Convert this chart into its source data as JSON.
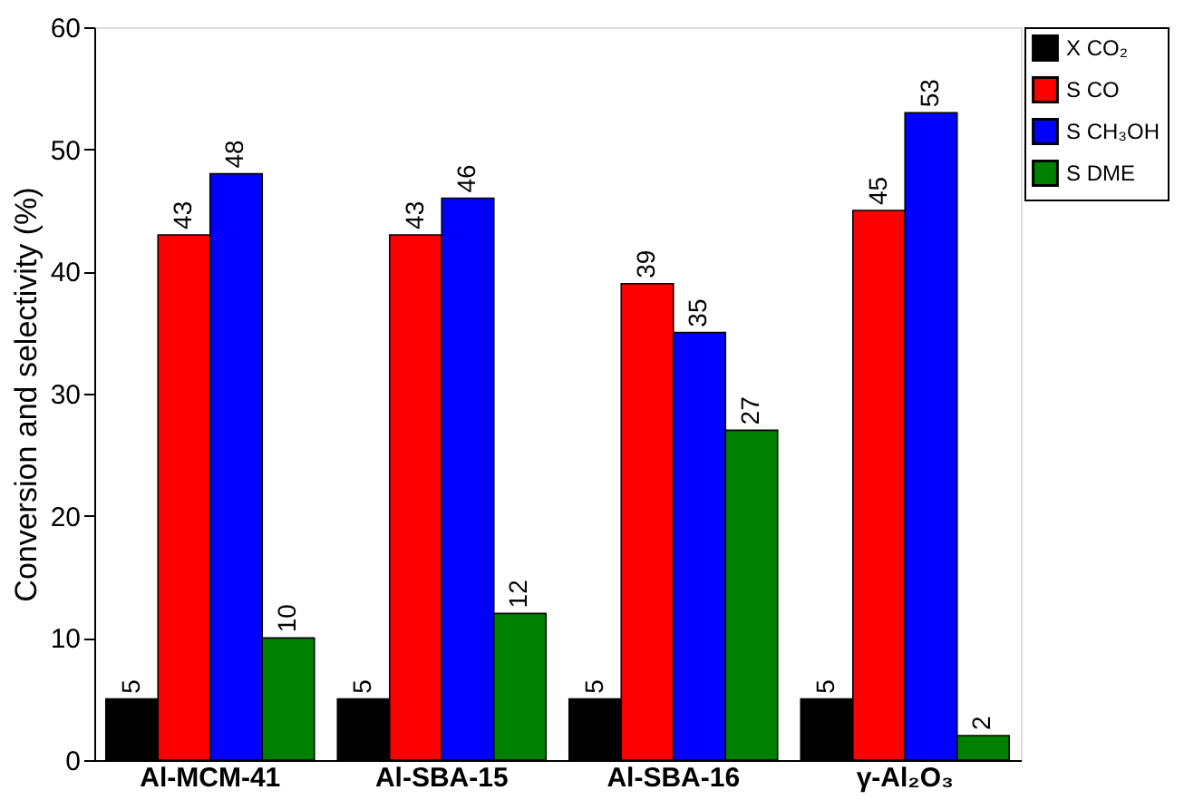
{
  "chart_data": {
    "type": "bar",
    "ylabel": "Conversion and selectivity (%)",
    "categories": [
      "Al-MCM-41",
      "Al-SBA-15",
      "Al-SBA-16",
      "γ-Al₂O₃"
    ],
    "series": [
      {
        "name": "X CO₂",
        "color": "#000000",
        "values": [
          5,
          5,
          5,
          5
        ]
      },
      {
        "name": "S CO",
        "color": "#ff0000",
        "values": [
          43,
          43,
          39,
          45
        ]
      },
      {
        "name": "S CH₃OH",
        "color": "#0000ff",
        "values": [
          48,
          46,
          35,
          53
        ]
      },
      {
        "name": "S DME",
        "color": "#008000",
        "values": [
          10,
          12,
          27,
          2
        ]
      }
    ],
    "ylim": [
      0,
      60
    ],
    "yticks": [
      0,
      10,
      20,
      30,
      40,
      50,
      60
    ],
    "grid": false,
    "legend": "right",
    "data_labels": true
  }
}
